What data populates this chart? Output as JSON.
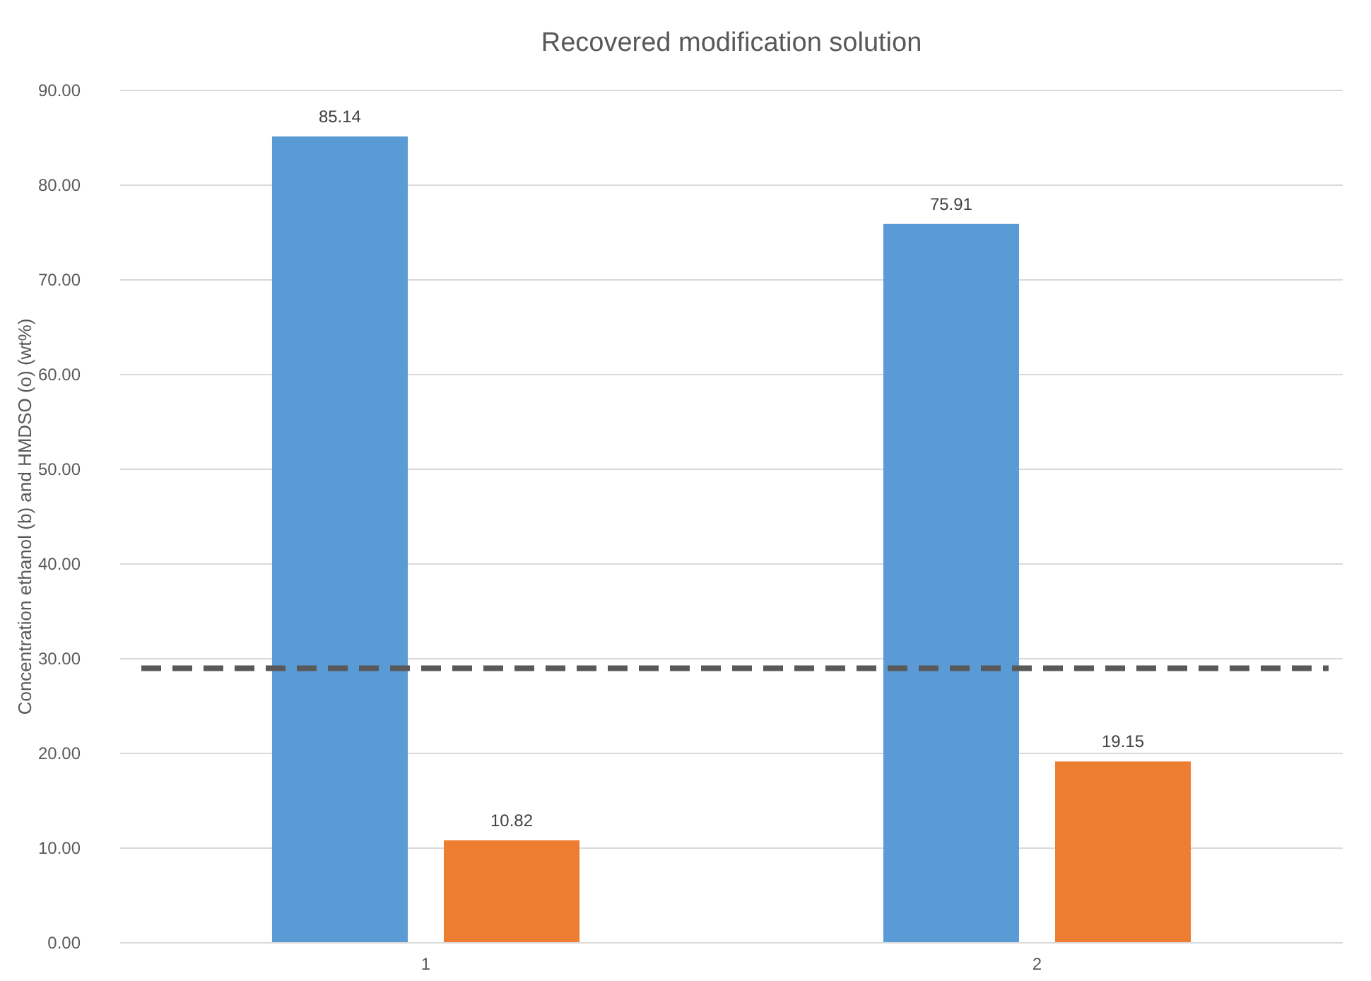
{
  "chart_data": {
    "type": "bar",
    "title": "Recovered modification solution",
    "ylabel": "Concentration ethanol (b) and HMDSO (o) (wt%)",
    "categories": [
      "1",
      "2"
    ],
    "series": [
      {
        "color": "#5b9bd5",
        "values": [
          85.14,
          75.91
        ]
      },
      {
        "color": "#ed7d31",
        "values": [
          10.82,
          19.15
        ]
      }
    ],
    "ylim": [
      0,
      90
    ],
    "yticks": [
      {
        "value": 0,
        "label": "0.00"
      },
      {
        "value": 10,
        "label": "10.00"
      },
      {
        "value": 20,
        "label": "20.00"
      },
      {
        "value": 30,
        "label": "30.00"
      },
      {
        "value": 40,
        "label": "40.00"
      },
      {
        "value": 50,
        "label": "50.00"
      },
      {
        "value": 60,
        "label": "60.00"
      },
      {
        "value": 70,
        "label": "70.00"
      },
      {
        "value": 80,
        "label": "80.00"
      },
      {
        "value": 90,
        "label": "90.00"
      }
    ],
    "grid": "y",
    "data_labels": true,
    "ref_lines": [
      {
        "axis": "y",
        "value": 29,
        "color": "#595959",
        "line_style": "dashed"
      }
    ]
  }
}
